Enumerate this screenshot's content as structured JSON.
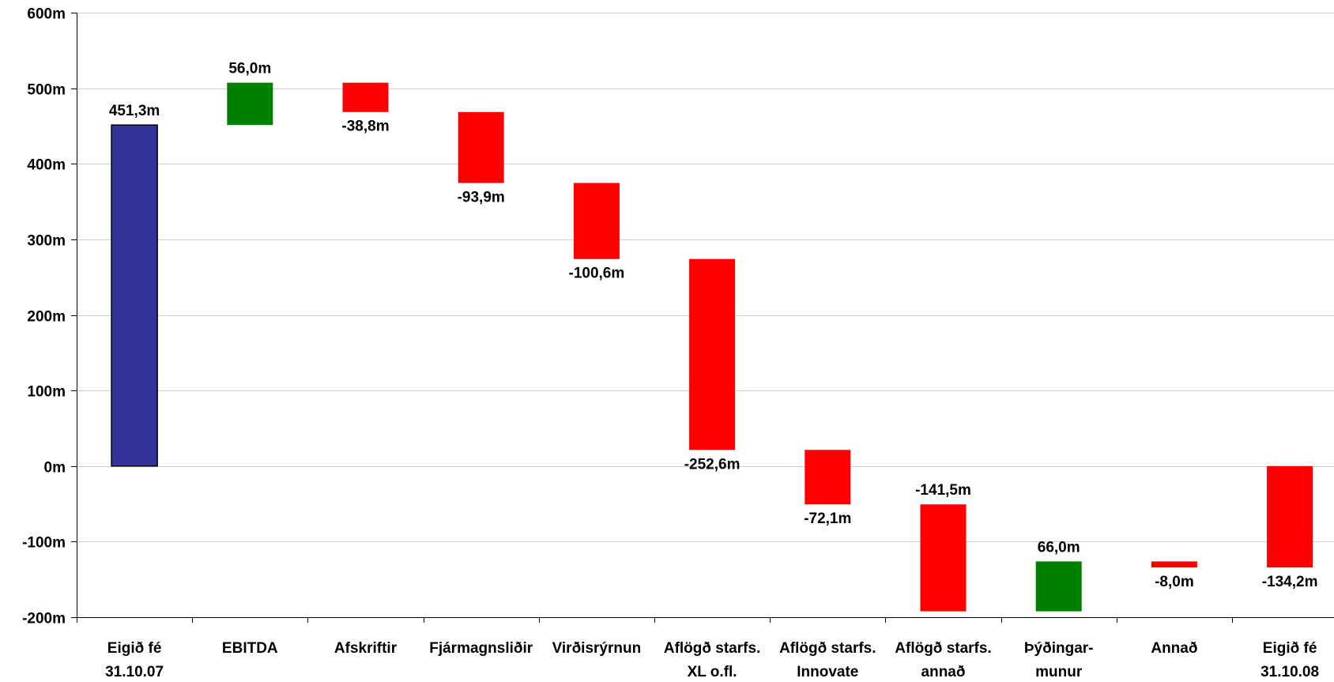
{
  "chart_data": {
    "type": "bar",
    "subtype": "waterfall",
    "title": "",
    "xlabel": "",
    "ylabel": "",
    "ylim": [
      -200,
      600
    ],
    "y_ticks": [
      600,
      500,
      400,
      300,
      200,
      100,
      0,
      -100,
      -200
    ],
    "y_tick_labels": [
      "600m",
      "500m",
      "400m",
      "300m",
      "200m",
      "100m",
      "0m",
      "-100m",
      "-200m"
    ],
    "grid": true,
    "legend": "none",
    "colors": {
      "total": "#333399",
      "increase": "#008000",
      "decrease": "#ff0000"
    },
    "categories": [
      [
        "Eigið fé",
        "31.10.07"
      ],
      [
        "EBITDA"
      ],
      [
        "Afskriftir"
      ],
      [
        "Fjármagnsliðir"
      ],
      [
        "Virðisrýrnun"
      ],
      [
        "Aflögð starfs.",
        "XL o.fl."
      ],
      [
        "Aflögð starfs.",
        "Innovate"
      ],
      [
        "Aflögð starfs.",
        "annað"
      ],
      [
        "Þýðingar-",
        "munur"
      ],
      [
        "Annað"
      ],
      [
        "Eigið fé",
        "31.10.08"
      ]
    ],
    "bars": [
      {
        "start": 0,
        "end": 451.3,
        "kind": "total",
        "label": "451,3m",
        "label_pos": "above"
      },
      {
        "start": 451.3,
        "end": 507.3,
        "kind": "increase",
        "label": "56,0m",
        "label_pos": "above"
      },
      {
        "start": 507.3,
        "end": 468.5,
        "kind": "decrease",
        "label": "-38,8m",
        "label_pos": "below"
      },
      {
        "start": 468.5,
        "end": 374.6,
        "kind": "decrease",
        "label": "-93,9m",
        "label_pos": "below"
      },
      {
        "start": 374.6,
        "end": 274.0,
        "kind": "decrease",
        "label": "-100,6m",
        "label_pos": "below"
      },
      {
        "start": 274.0,
        "end": 21.4,
        "kind": "decrease",
        "label": "-252,6m",
        "label_pos": "below"
      },
      {
        "start": 21.4,
        "end": -50.7,
        "kind": "decrease",
        "label": "-72,1m",
        "label_pos": "below"
      },
      {
        "start": -50.7,
        "end": -192.2,
        "kind": "decrease",
        "label": "-141,5m",
        "label_pos": "above"
      },
      {
        "start": -192.2,
        "end": -126.2,
        "kind": "increase",
        "label": "66,0m",
        "label_pos": "above"
      },
      {
        "start": -126.2,
        "end": -134.2,
        "kind": "decrease",
        "label": "-8,0m",
        "label_pos": "below"
      },
      {
        "start": 0,
        "end": -134.2,
        "kind": "decrease",
        "label": "-134,2m",
        "label_pos": "below"
      }
    ]
  }
}
